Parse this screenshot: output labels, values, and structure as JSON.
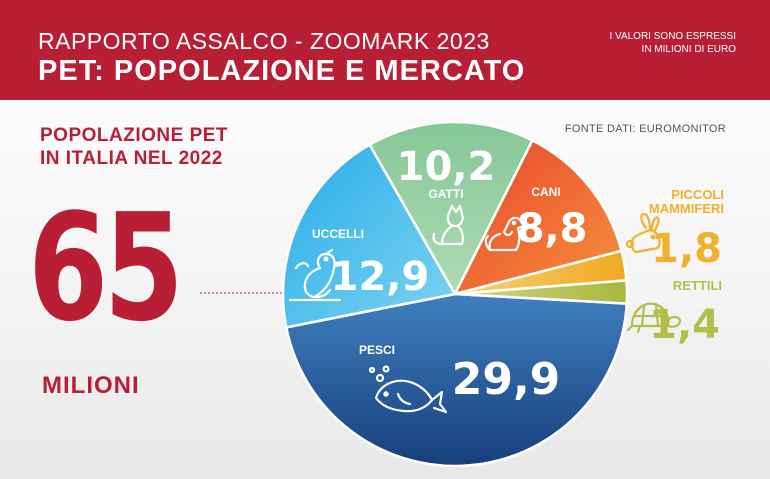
{
  "header": {
    "subtitle": "RAPPORTO ASSALCO - ZOOMARK 2023",
    "title": "PET: POPOLAZIONE E MERCATO",
    "note_line1": "I VALORI  SONO ESPRESSI",
    "note_line2": "IN MILIONI DI EURO"
  },
  "population": {
    "title_line1": "POPOLAZIONE PET",
    "title_line2": "IN ITALIA NEL 2022",
    "total": "65",
    "unit": "MILIONI"
  },
  "source": "FONTE DATI: EUROMONITOR",
  "chart_data": {
    "type": "pie",
    "slices": [
      {
        "label": "PESCI",
        "value": 29.9,
        "display": "29,9",
        "color": "#2f6aa8",
        "icon": "fish-icon"
      },
      {
        "label": "UCCELLI",
        "value": 12.9,
        "display": "12,9",
        "color": "#3cb5e8",
        "icon": "bird-icon"
      },
      {
        "label": "GATTI",
        "value": 10.2,
        "display": "10,2",
        "color": "#8ccb9a",
        "icon": "cat-icon"
      },
      {
        "label": "CANI",
        "value": 8.8,
        "display": "8,8",
        "color": "#ee5a2e",
        "icon": "dog-icon"
      },
      {
        "label": "PICCOLI MAMMIFERI",
        "value": 1.8,
        "display": "1,8",
        "color": "#f1b12c",
        "icon": "rabbit-icon"
      },
      {
        "label": "RETTILI",
        "value": 1.4,
        "display": "1,4",
        "color": "#b2bf4a",
        "icon": "turtle-icon"
      }
    ]
  }
}
